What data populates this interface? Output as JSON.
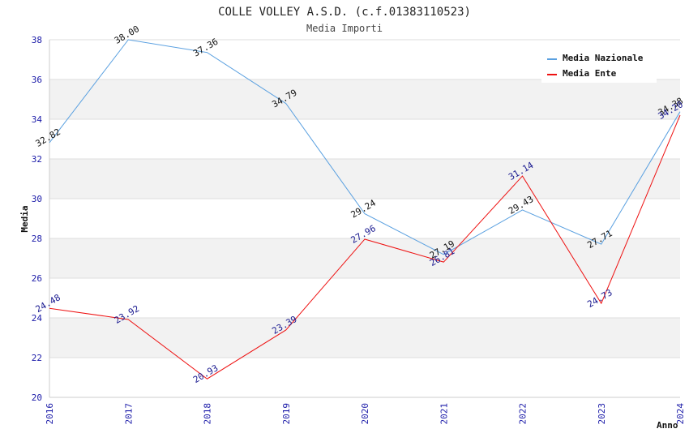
{
  "chart_data": {
    "type": "line",
    "title": "COLLE VOLLEY A.S.D. (c.f.01383110523)",
    "subtitle": "Media Importi",
    "xlabel": "Anno",
    "ylabel": "Media",
    "x": [
      "2016",
      "2017",
      "2018",
      "2019",
      "2020",
      "2021",
      "2022",
      "2023",
      "2024"
    ],
    "ylim": [
      20,
      38
    ],
    "yticks": [
      "20",
      "22",
      "24",
      "26",
      "28",
      "30",
      "32",
      "34",
      "36",
      "38"
    ],
    "series": [
      {
        "name": "Media Nazionale",
        "color": "#5aa0e0",
        "values": [
          32.82,
          38.0,
          37.36,
          34.79,
          29.24,
          27.19,
          29.43,
          27.71,
          34.38
        ],
        "labels": [
          "32.82",
          "38.00",
          "37.36",
          "34.79",
          "29.24",
          "27.19",
          "29.43",
          "27.71",
          "34.38"
        ]
      },
      {
        "name": "Media Ente",
        "color": "#ee1111",
        "values": [
          24.48,
          23.92,
          20.93,
          23.39,
          27.96,
          26.81,
          31.14,
          24.73,
          34.2
        ],
        "labels": [
          "24.48",
          "23.92",
          "20.93",
          "23.39",
          "27.96",
          "26.81",
          "31.14",
          "24.73",
          "34.20"
        ]
      }
    ],
    "legend_position": "top-right",
    "grid": true
  }
}
